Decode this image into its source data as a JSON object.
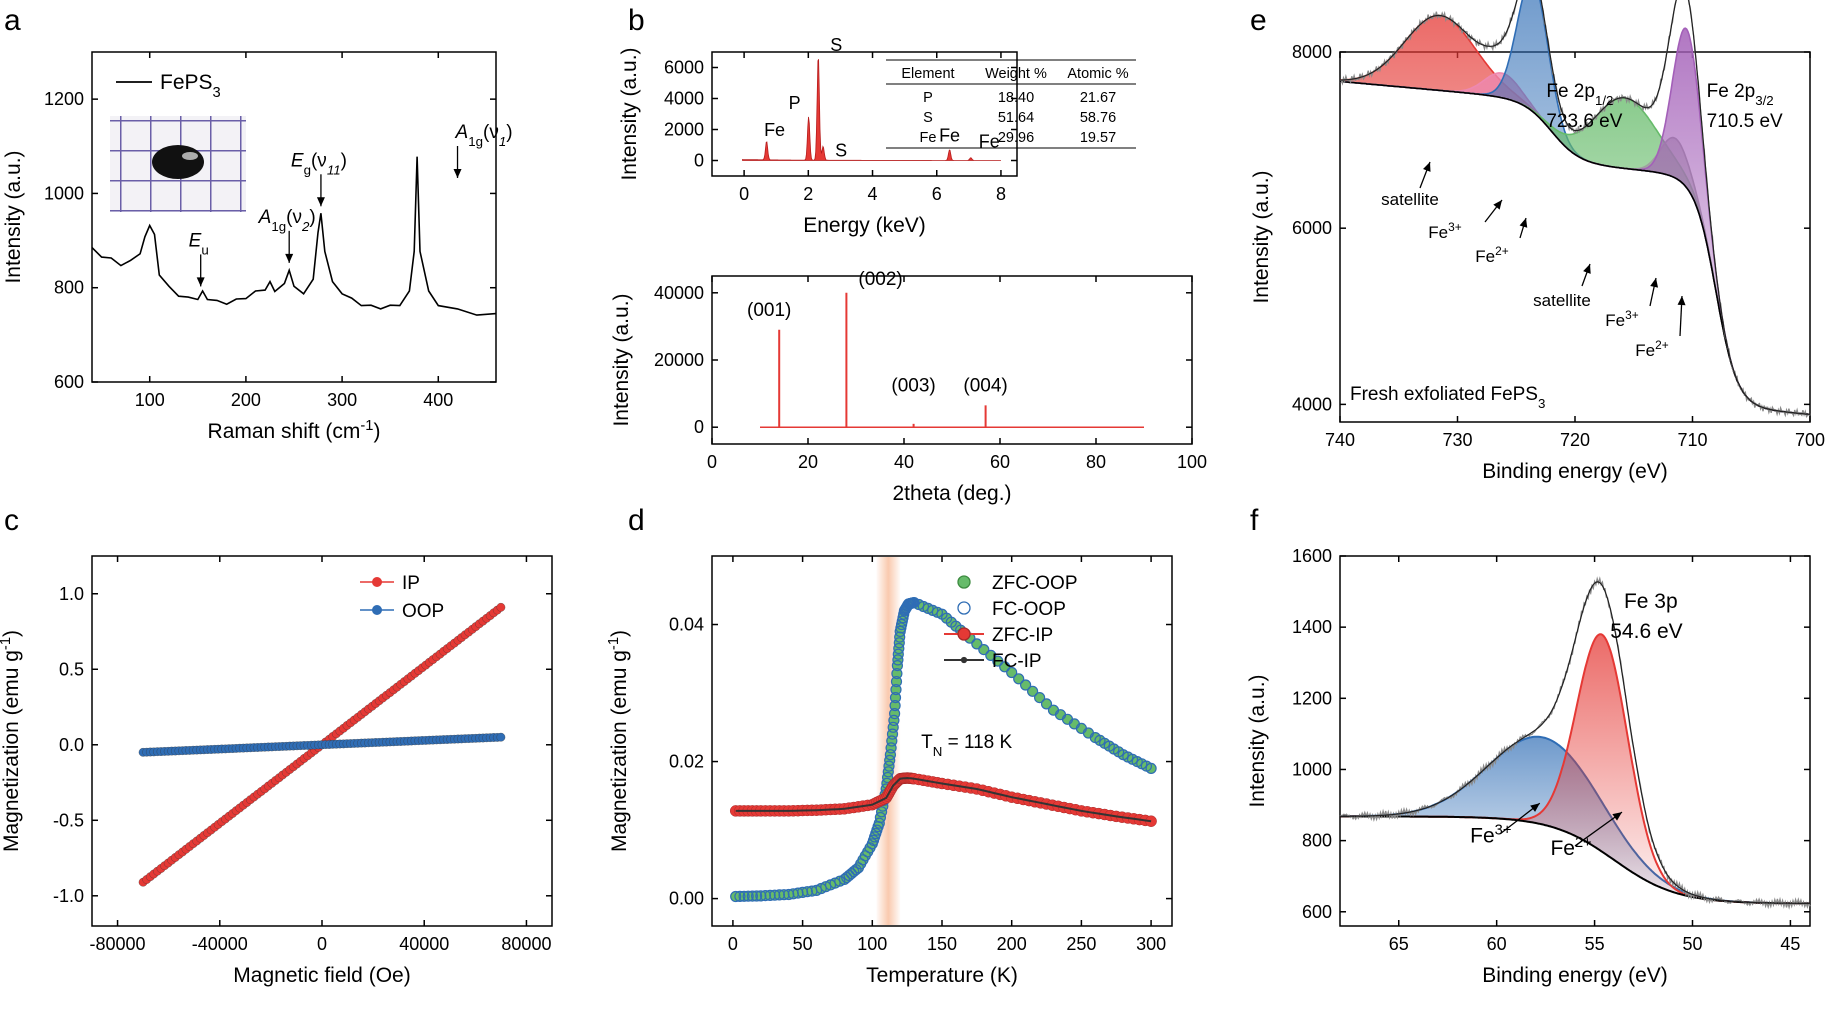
{
  "colors": {
    "red": "#e53935",
    "blue": "#2f6db5",
    "green": "#66bb6a",
    "purple": "#a35fb8",
    "grey": "#7f7f7f",
    "black": "#000000",
    "pink": "#ee88b0",
    "orange": "#f6a678"
  },
  "chart_data": [
    {
      "id": "a",
      "panel_label": "a",
      "type": "line",
      "xlabel": "Raman shift (cm",
      "xlabel_sup": "-1",
      "xlabel_tail": ")",
      "ylabel": "Intensity (a.u.)",
      "xlim": [
        40,
        460
      ],
      "ylim": [
        600,
        1300
      ],
      "xticks": [
        100,
        200,
        300,
        400
      ],
      "yticks": [
        600,
        800,
        1000,
        1200
      ],
      "legend": {
        "name": "FePS",
        "sub": "3"
      },
      "inset_photo": "sample-photo-on-grid-paper",
      "x": [
        40,
        50,
        60,
        70,
        80,
        90,
        95,
        100,
        105,
        110,
        120,
        130,
        140,
        150,
        155,
        160,
        170,
        180,
        190,
        200,
        210,
        220,
        225,
        230,
        240,
        245,
        250,
        260,
        270,
        275,
        278,
        282,
        290,
        300,
        310,
        320,
        330,
        340,
        350,
        360,
        370,
        375,
        378,
        381,
        390,
        400,
        420,
        440,
        460
      ],
      "y": [
        882,
        868,
        860,
        850,
        855,
        875,
        905,
        935,
        910,
        830,
        800,
        785,
        777,
        778,
        790,
        778,
        770,
        768,
        773,
        780,
        790,
        798,
        810,
        795,
        806,
        840,
        800,
        790,
        815,
        920,
        955,
        880,
        810,
        790,
        775,
        765,
        760,
        758,
        760,
        765,
        790,
        880,
        1075,
        880,
        790,
        765,
        752,
        745,
        742
      ],
      "annotations": [
        {
          "main": "E",
          "sub": "u",
          "post": "",
          "x": 153,
          "y": 790
        },
        {
          "main": "A",
          "sub": "1g",
          "post": "(ν",
          "sub2": "2",
          "post2": ")",
          "x": 245,
          "y": 840
        },
        {
          "main": "E",
          "sub": "g",
          "post": "(ν",
          "sub2": "11",
          "post2": ")",
          "x": 278,
          "y": 960
        },
        {
          "main": "A",
          "sub": "1g",
          "post": "(ν",
          "sub2": "1",
          "post2": ")",
          "x": 420,
          "y": 1020
        }
      ]
    },
    {
      "id": "b-top",
      "panel_label": "b",
      "type": "area",
      "xlabel": "Energy (keV)",
      "ylabel": "Intensity (a.u.)",
      "xlim": [
        -1,
        8.5
      ],
      "ylim": [
        -1000,
        7000
      ],
      "xticks": [
        0,
        2,
        4,
        6,
        8
      ],
      "yticks": [
        0,
        2000,
        4000,
        6000
      ],
      "peaks": [
        {
          "x": 0.7,
          "y": 1200,
          "label": "Fe"
        },
        {
          "x": 2.01,
          "y": 2800,
          "label": "P"
        },
        {
          "x": 2.31,
          "y": 6800,
          "label": "S"
        },
        {
          "x": 2.46,
          "y": 900,
          "label": "S"
        },
        {
          "x": 6.4,
          "y": 700,
          "label": "Fe"
        },
        {
          "x": 7.06,
          "y": 180,
          "label": "Fe"
        }
      ],
      "table": {
        "headers": [
          "Element",
          "Weight %",
          "Atomic %"
        ],
        "rows": [
          [
            "P",
            "18.40",
            "21.67"
          ],
          [
            "S",
            "51.64",
            "58.76"
          ],
          [
            "Fe",
            "29.96",
            "19.57"
          ]
        ]
      }
    },
    {
      "id": "b-bottom",
      "type": "bar",
      "xlabel": "2theta (deg.)",
      "ylabel": "Intensity (a.u.)",
      "xlim": [
        0,
        100
      ],
      "ylim": [
        -5000,
        45000
      ],
      "xticks": [
        0,
        20,
        40,
        60,
        80,
        100
      ],
      "yticks": [
        0,
        20000,
        40000
      ],
      "peaks": [
        {
          "x": 14,
          "y": 29000,
          "label": "(001)"
        },
        {
          "x": 28,
          "y": 40000,
          "label": "(002)"
        },
        {
          "x": 42,
          "y": 1000,
          "label": "(003)"
        },
        {
          "x": 57,
          "y": 6500,
          "label": "(004)"
        }
      ]
    },
    {
      "id": "c",
      "panel_label": "c",
      "type": "scatter",
      "xlabel": "Magnetic field (Oe)",
      "ylabel": "Magnetization (emu g",
      "ylabel_sup": "-1",
      "ylabel_tail": ")",
      "xlim": [
        -90000,
        90000
      ],
      "ylim": [
        -1.2,
        1.25
      ],
      "xticks": [
        -80000,
        -40000,
        0,
        40000,
        80000
      ],
      "yticks": [
        -1.0,
        -0.5,
        0.0,
        0.5,
        1.0
      ],
      "xticklabels": [
        "-80000",
        "-40000",
        "0",
        "40000",
        "80000"
      ],
      "yticklabels": [
        "-1.0",
        "-0.5",
        "0.0",
        "0.5",
        "1.0"
      ],
      "series": [
        {
          "name": "IP",
          "color": "#e53935",
          "x_start": -70000,
          "x_end": 70000,
          "y_start": -0.91,
          "y_end": 0.91
        },
        {
          "name": "OOP",
          "color": "#2f6db5",
          "x_start": -70000,
          "x_end": 70000,
          "y_start": -0.05,
          "y_end": 0.05
        }
      ]
    },
    {
      "id": "d",
      "panel_label": "d",
      "type": "scatter",
      "xlabel": "Temperature (K)",
      "ylabel": "Magnetization (emu g",
      "ylabel_sup": "-1",
      "ylabel_tail": ")",
      "xlim": [
        -15,
        315
      ],
      "ylim": [
        -0.004,
        0.05
      ],
      "xticks": [
        0,
        50,
        100,
        150,
        200,
        250,
        300
      ],
      "yticks": [
        0.0,
        0.02,
        0.04
      ],
      "yticklabels": [
        "0.00",
        "0.02",
        "0.04"
      ],
      "highlight_band": [
        103,
        120
      ],
      "annotation": {
        "main": "T",
        "sub": "N",
        "post": " = 118 K",
        "x": 135,
        "y": 0.022
      },
      "series": [
        {
          "name": "ZFC-OOP",
          "x": [
            2,
            20,
            40,
            60,
            80,
            90,
            100,
            105,
            110,
            113,
            116,
            118,
            120,
            123,
            126,
            130,
            150,
            170,
            200,
            230,
            260,
            280,
            300
          ],
          "y": [
            0.0003,
            0.0004,
            0.0006,
            0.0012,
            0.0028,
            0.0045,
            0.008,
            0.011,
            0.016,
            0.021,
            0.027,
            0.034,
            0.039,
            0.042,
            0.043,
            0.0432,
            0.0415,
            0.038,
            0.033,
            0.0275,
            0.0235,
            0.021,
            0.019
          ]
        },
        {
          "name": "FC-OOP",
          "x": [
            2,
            20,
            40,
            60,
            80,
            90,
            100,
            105,
            110,
            113,
            116,
            118,
            120,
            123,
            126,
            130,
            150,
            170,
            200,
            230,
            260,
            280,
            300
          ],
          "y": [
            0.0003,
            0.0004,
            0.0006,
            0.0012,
            0.0028,
            0.0045,
            0.008,
            0.011,
            0.016,
            0.021,
            0.027,
            0.034,
            0.039,
            0.042,
            0.043,
            0.0432,
            0.0415,
            0.038,
            0.033,
            0.0275,
            0.0235,
            0.021,
            0.019
          ]
        },
        {
          "name": "ZFC-IP",
          "x": [
            2,
            20,
            40,
            60,
            80,
            100,
            110,
            115,
            120,
            125,
            130,
            150,
            175,
            200,
            225,
            250,
            275,
            300
          ],
          "y": [
            0.0128,
            0.0128,
            0.0128,
            0.0129,
            0.0131,
            0.0137,
            0.0147,
            0.0165,
            0.0175,
            0.0176,
            0.0175,
            0.0168,
            0.016,
            0.0148,
            0.0138,
            0.0128,
            0.012,
            0.0113
          ]
        },
        {
          "name": "FC-IP",
          "x": [
            2,
            20,
            40,
            60,
            80,
            100,
            110,
            115,
            120,
            125,
            130,
            150,
            175,
            200,
            225,
            250,
            275,
            300
          ],
          "y": [
            0.0128,
            0.0128,
            0.0128,
            0.0129,
            0.0131,
            0.0137,
            0.0147,
            0.0165,
            0.0175,
            0.0176,
            0.0175,
            0.0168,
            0.016,
            0.0148,
            0.0138,
            0.0128,
            0.012,
            0.0113
          ]
        }
      ]
    },
    {
      "id": "e",
      "panel_label": "e",
      "type": "area",
      "xlabel": "Binding energy (eV)",
      "ylabel": "Intensity (a.u.)",
      "xlim": [
        740,
        700
      ],
      "ylim": [
        3800,
        8000
      ],
      "xticks": [
        740,
        730,
        720,
        710,
        700
      ],
      "yticks": [
        4000,
        6000,
        8000
      ],
      "inner_label": {
        "text": "Fresh exfoliated FePS",
        "sub": "3"
      },
      "labels": [
        {
          "line1": "Fe 2p",
          "sub": "1/2",
          "line2": "723.6 eV"
        },
        {
          "line1": "Fe 2p",
          "sub": "3/2",
          "line2": "710.5 eV"
        }
      ],
      "peak_labels": [
        {
          "text": "satellite"
        },
        {
          "text": "Fe",
          "sup": "3+"
        },
        {
          "text": "Fe",
          "sup": "2+"
        },
        {
          "text": "satellite"
        },
        {
          "text": "Fe",
          "sup": "3+"
        },
        {
          "text": "Fe",
          "sup": "2+"
        }
      ],
      "components": [
        {
          "name": "satellite-2p1/2",
          "center": 731.5,
          "height": 850,
          "sigma": 3.0,
          "color": "#e53935"
        },
        {
          "name": "Fe3+-2p1/2",
          "center": 726.2,
          "height": 280,
          "sigma": 1.5,
          "color": "#ee88b0"
        },
        {
          "name": "Fe2+-2p1/2",
          "center": 723.6,
          "height": 1500,
          "sigma": 1.3,
          "color": "#2f6db5"
        },
        {
          "name": "satellite-2p3/2",
          "center": 715.8,
          "height": 800,
          "sigma": 2.7,
          "color": "#66bb6a"
        },
        {
          "name": "Fe3+-2p3/2",
          "center": 711.5,
          "height": 450,
          "sigma": 1.2,
          "color": "#a0a0a0"
        },
        {
          "name": "Fe2+-2p3/2",
          "center": 710.5,
          "height": 1800,
          "sigma": 1.2,
          "color": "#a35fb8"
        }
      ]
    },
    {
      "id": "f",
      "panel_label": "f",
      "type": "area",
      "xlabel": "Binding energy (eV)",
      "ylabel": "Intensity (a.u.)",
      "xlim": [
        68,
        44
      ],
      "ylim": [
        560,
        1600
      ],
      "xticks": [
        65,
        60,
        55,
        50,
        45
      ],
      "yticks": [
        600,
        800,
        1000,
        1200,
        1400,
        1600
      ],
      "labels": [
        {
          "line1": "Fe 3p",
          "line2": "54.6 eV"
        }
      ],
      "peak_labels": [
        {
          "text": "Fe",
          "sup": "3+"
        },
        {
          "text": "Fe",
          "sup": "2+"
        }
      ],
      "components": [
        {
          "name": "Fe3+",
          "center": 57.6,
          "height": 245,
          "sigma": 2.8,
          "color": "#2f6db5"
        },
        {
          "name": "Fe2+",
          "center": 54.6,
          "height": 610,
          "sigma": 1.3,
          "color": "#e53935"
        }
      ]
    }
  ]
}
